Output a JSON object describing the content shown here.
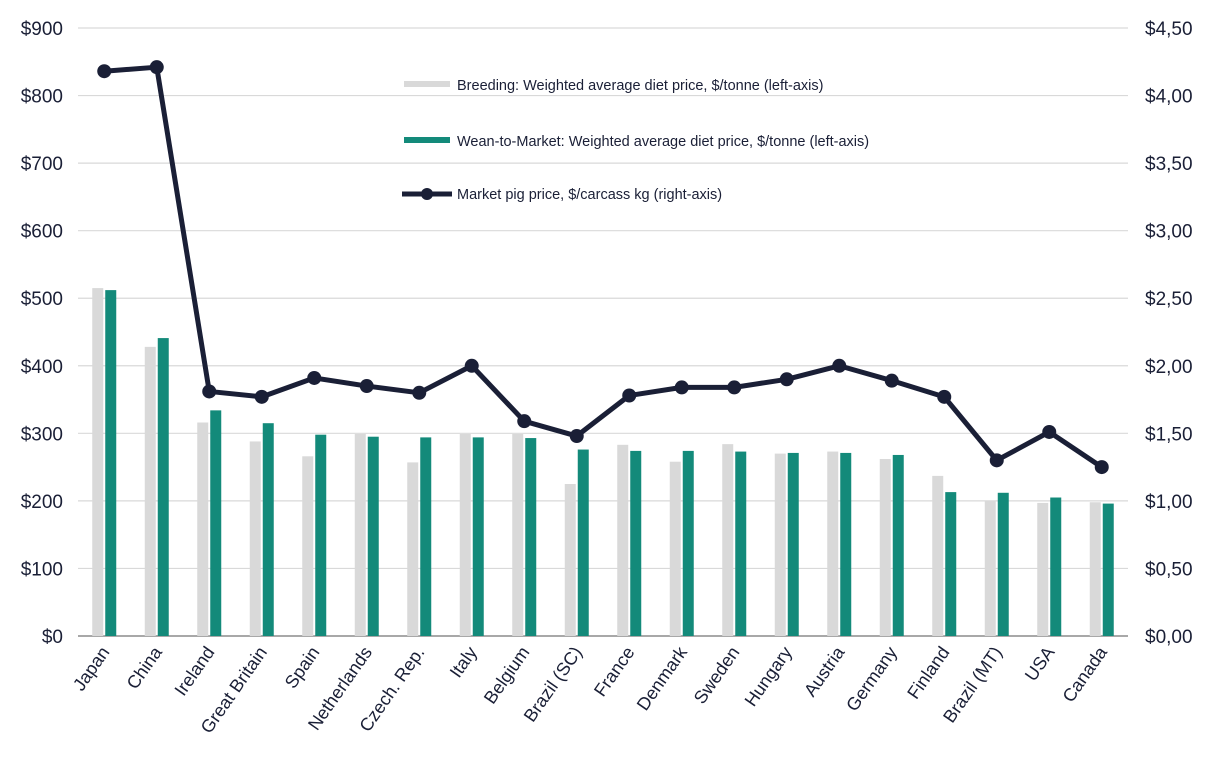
{
  "chart_data": {
    "type": "bar",
    "categories": [
      "Japan",
      "China",
      "Ireland",
      "Great Britain",
      "Spain",
      "Netherlands",
      "Czech. Rep.",
      "Italy",
      "Belgium",
      "Brazil (SC)",
      "France",
      "Denmark",
      "Sweden",
      "Hungary",
      "Austria",
      "Germany",
      "Finland",
      "Brazil (MT)",
      "USA",
      "Canada"
    ],
    "series": [
      {
        "name": "Breeding: Weighted average diet price, $/tonne (left-axis)",
        "type": "bar",
        "axis": "left",
        "color": "#d9d9d9",
        "values": [
          515,
          428,
          316,
          288,
          266,
          299,
          257,
          299,
          299,
          225,
          283,
          258,
          284,
          270,
          273,
          262,
          237,
          200,
          197,
          198
        ]
      },
      {
        "name": "Wean-to-Market: Weighted average diet price, $/tonne (left-axis)",
        "type": "bar",
        "axis": "left",
        "color": "#138a7a",
        "values": [
          512,
          441,
          334,
          315,
          298,
          295,
          294,
          294,
          293,
          276,
          274,
          274,
          273,
          271,
          271,
          268,
          213,
          212,
          205,
          196
        ]
      },
      {
        "name": "Market pig price, $/carcass kg (right-axis)",
        "type": "line",
        "axis": "right",
        "color": "#1a1f36",
        "values": [
          4.18,
          4.21,
          1.81,
          1.77,
          1.91,
          1.85,
          1.8,
          2.0,
          1.59,
          1.48,
          1.78,
          1.84,
          1.84,
          1.9,
          2.0,
          1.89,
          1.77,
          1.3,
          1.51,
          1.25
        ]
      }
    ],
    "y_left": {
      "ylim": [
        0,
        900
      ],
      "ticks": [
        0,
        100,
        200,
        300,
        400,
        500,
        600,
        700,
        800,
        900
      ],
      "tick_labels": [
        "$0",
        "$100",
        "$200",
        "$300",
        "$400",
        "$500",
        "$600",
        "$700",
        "$800",
        "$900"
      ]
    },
    "y_right": {
      "ylim": [
        0,
        4.5
      ],
      "ticks": [
        0,
        0.5,
        1,
        1.5,
        2,
        2.5,
        3,
        3.5,
        4,
        4.5
      ],
      "tick_labels": [
        "$0,00",
        "$0,50",
        "$1,00",
        "$1,50",
        "$2,00",
        "$2,50",
        "$3,00",
        "$3,50",
        "$4,00",
        "$4,50"
      ]
    },
    "grid": true,
    "legend": {
      "position": "top-center"
    },
    "title": "",
    "xlabel": "",
    "ylabel": ""
  }
}
